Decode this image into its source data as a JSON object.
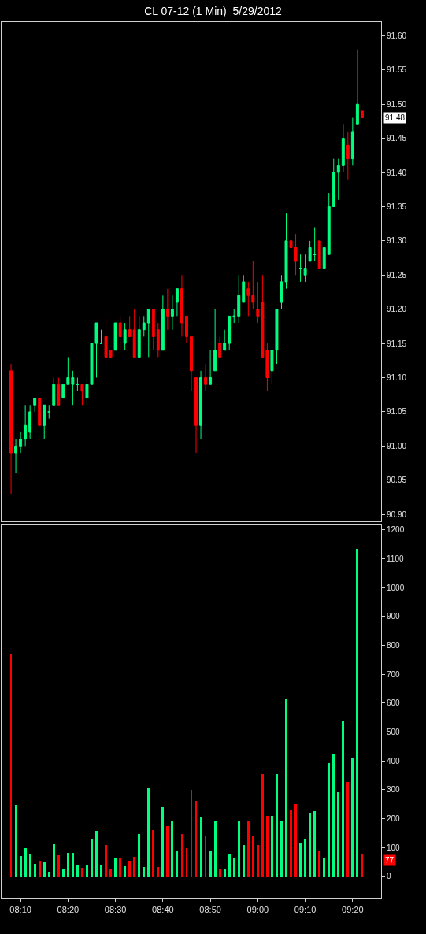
{
  "chart_data": [
    {
      "type": "candlestick",
      "title": "CL 07-12 (1 Min)  5/29/2012",
      "x": [
        "2012-05-29T08:08",
        "2012-05-29T08:09",
        "2012-05-29T08:10",
        "2012-05-29T08:11",
        "2012-05-29T08:12",
        "2012-05-29T08:13",
        "2012-05-29T08:14",
        "2012-05-29T08:15",
        "2012-05-29T08:16",
        "2012-05-29T08:17",
        "2012-05-29T08:18",
        "2012-05-29T08:19",
        "2012-05-29T08:20",
        "2012-05-29T08:21",
        "2012-05-29T08:22",
        "2012-05-29T08:23",
        "2012-05-29T08:24",
        "2012-05-29T08:25",
        "2012-05-29T08:26",
        "2012-05-29T08:27",
        "2012-05-29T08:28",
        "2012-05-29T08:29",
        "2012-05-29T08:30",
        "2012-05-29T08:31",
        "2012-05-29T08:32",
        "2012-05-29T08:33",
        "2012-05-29T08:34",
        "2012-05-29T08:35",
        "2012-05-29T08:36",
        "2012-05-29T08:37",
        "2012-05-29T08:38",
        "2012-05-29T08:39",
        "2012-05-29T08:40",
        "2012-05-29T08:41",
        "2012-05-29T08:42",
        "2012-05-29T08:43",
        "2012-05-29T08:44",
        "2012-05-29T08:45",
        "2012-05-29T08:46",
        "2012-05-29T08:47",
        "2012-05-29T08:48",
        "2012-05-29T08:49",
        "2012-05-29T08:50",
        "2012-05-29T08:51",
        "2012-05-29T08:52",
        "2012-05-29T08:53",
        "2012-05-29T08:54",
        "2012-05-29T08:55",
        "2012-05-29T08:56",
        "2012-05-29T08:57",
        "2012-05-29T08:58",
        "2012-05-29T08:59",
        "2012-05-29T09:00",
        "2012-05-29T09:01",
        "2012-05-29T09:02",
        "2012-05-29T09:03",
        "2012-05-29T09:04",
        "2012-05-29T09:05",
        "2012-05-29T09:06",
        "2012-05-29T09:07",
        "2012-05-29T09:08",
        "2012-05-29T09:09",
        "2012-05-29T09:10",
        "2012-05-29T09:11",
        "2012-05-29T09:12",
        "2012-05-29T09:13",
        "2012-05-29T09:14",
        "2012-05-29T09:15",
        "2012-05-29T09:16",
        "2012-05-29T09:17",
        "2012-05-29T09:18",
        "2012-05-29T09:19",
        "2012-05-29T09:20",
        "2012-05-29T09:21",
        "2012-05-29T09:22"
      ],
      "ohlc": [
        [
          91.11,
          91.12,
          90.93,
          90.99
        ],
        [
          90.99,
          91.01,
          90.96,
          91.0
        ],
        [
          91.0,
          91.02,
          90.99,
          91.01
        ],
        [
          91.01,
          91.06,
          91.0,
          91.03
        ],
        [
          91.02,
          91.06,
          91.01,
          91.05
        ],
        [
          91.06,
          91.07,
          91.05,
          91.07
        ],
        [
          91.07,
          91.07,
          91.03,
          91.03
        ],
        [
          91.03,
          91.06,
          91.01,
          91.06
        ],
        [
          91.05,
          91.06,
          91.04,
          91.05
        ],
        [
          91.06,
          91.1,
          91.06,
          91.09
        ],
        [
          91.09,
          91.1,
          91.06,
          91.06
        ],
        [
          91.07,
          91.09,
          91.07,
          91.09
        ],
        [
          91.09,
          91.13,
          91.09,
          91.1
        ],
        [
          91.09,
          91.11,
          91.06,
          91.1
        ],
        [
          91.09,
          91.1,
          91.08,
          91.09
        ],
        [
          91.09,
          91.09,
          91.06,
          91.08
        ],
        [
          91.07,
          91.1,
          91.06,
          91.09
        ],
        [
          91.09,
          91.15,
          91.09,
          91.15
        ],
        [
          91.15,
          91.18,
          91.1,
          91.18
        ],
        [
          91.15,
          91.17,
          91.15,
          91.15
        ],
        [
          91.16,
          91.19,
          91.12,
          91.13
        ],
        [
          91.14,
          91.14,
          91.13,
          91.13
        ],
        [
          91.14,
          91.18,
          91.14,
          91.18
        ],
        [
          91.18,
          91.19,
          91.14,
          91.16
        ],
        [
          91.15,
          91.18,
          91.14,
          91.17
        ],
        [
          91.17,
          91.19,
          91.16,
          91.16
        ],
        [
          91.17,
          91.2,
          91.13,
          91.13
        ],
        [
          91.13,
          91.19,
          91.13,
          91.17
        ],
        [
          91.17,
          91.19,
          91.16,
          91.18
        ],
        [
          91.18,
          91.2,
          91.13,
          91.2
        ],
        [
          91.2,
          91.2,
          91.14,
          91.16
        ],
        [
          91.17,
          91.18,
          91.13,
          91.14
        ],
        [
          91.14,
          91.22,
          91.14,
          91.2
        ],
        [
          91.2,
          91.23,
          91.17,
          91.19
        ],
        [
          91.19,
          91.22,
          91.17,
          91.2
        ],
        [
          91.21,
          91.23,
          91.19,
          91.23
        ],
        [
          91.23,
          91.25,
          91.16,
          91.18
        ],
        [
          91.19,
          91.19,
          91.15,
          91.16
        ],
        [
          91.16,
          91.16,
          91.08,
          91.11
        ],
        [
          91.1,
          91.1,
          90.99,
          91.03
        ],
        [
          91.03,
          91.11,
          91.01,
          91.1
        ],
        [
          91.1,
          91.12,
          91.08,
          91.09
        ],
        [
          91.09,
          91.14,
          91.09,
          91.1
        ],
        [
          91.11,
          91.2,
          91.11,
          91.14
        ],
        [
          91.15,
          91.16,
          91.13,
          91.13
        ],
        [
          91.14,
          91.17,
          91.14,
          91.15
        ],
        [
          91.15,
          91.19,
          91.14,
          91.19
        ],
        [
          91.19,
          91.2,
          91.18,
          91.19
        ],
        [
          91.19,
          91.25,
          91.18,
          91.22
        ],
        [
          91.21,
          91.25,
          91.21,
          91.24
        ],
        [
          91.23,
          91.24,
          91.19,
          91.22
        ],
        [
          91.22,
          91.27,
          91.2,
          91.21
        ],
        [
          91.2,
          91.24,
          91.18,
          91.19
        ],
        [
          91.21,
          91.25,
          91.13,
          91.13
        ],
        [
          91.14,
          91.15,
          91.08,
          91.1
        ],
        [
          91.11,
          91.14,
          91.09,
          91.14
        ],
        [
          91.14,
          91.2,
          91.12,
          91.2
        ],
        [
          91.21,
          91.25,
          91.2,
          91.24
        ],
        [
          91.24,
          91.34,
          91.23,
          91.3
        ],
        [
          91.3,
          91.32,
          91.28,
          91.29
        ],
        [
          91.29,
          91.31,
          91.25,
          91.27
        ],
        [
          91.26,
          91.28,
          91.24,
          91.26
        ],
        [
          91.25,
          91.28,
          91.24,
          91.26
        ],
        [
          91.27,
          91.3,
          91.27,
          91.29
        ],
        [
          91.28,
          91.32,
          91.27,
          91.28
        ],
        [
          91.3,
          91.3,
          91.26,
          91.26
        ],
        [
          91.26,
          91.29,
          91.26,
          91.29
        ],
        [
          91.28,
          91.37,
          91.28,
          91.35
        ],
        [
          91.35,
          91.42,
          91.35,
          91.4
        ],
        [
          91.4,
          91.42,
          91.36,
          91.41
        ],
        [
          91.41,
          91.47,
          91.4,
          91.45
        ],
        [
          91.44,
          91.46,
          91.39,
          91.42
        ],
        [
          91.42,
          91.48,
          91.41,
          91.46
        ],
        [
          91.47,
          91.58,
          91.47,
          91.5
        ],
        [
          91.49,
          91.49,
          91.48,
          91.48
        ]
      ],
      "colors": [
        "#ff0000",
        "#00ff80",
        "#00ff80",
        "#00ff80",
        "#00ff80",
        "#00ff80",
        "#ff0000",
        "#00ff80",
        "#00ff80",
        "#00ff80",
        "#ff0000",
        "#00ff80",
        "#00ff80",
        "#00ff80",
        "#00ff80",
        "#ff0000",
        "#00ff80",
        "#00ff80",
        "#00ff80",
        "#00ff80",
        "#ff0000",
        "#ff0000",
        "#00ff80",
        "#ff0000",
        "#00ff80",
        "#ff0000",
        "#ff0000",
        "#00ff80",
        "#00ff80",
        "#00ff80",
        "#ff0000",
        "#ff0000",
        "#00ff80",
        "#ff0000",
        "#00ff80",
        "#00ff80",
        "#ff0000",
        "#ff0000",
        "#ff0000",
        "#ff0000",
        "#00ff80",
        "#ff0000",
        "#00ff80",
        "#00ff80",
        "#ff0000",
        "#00ff80",
        "#00ff80",
        "#00ff80",
        "#00ff80",
        "#00ff80",
        "#ff0000",
        "#ff0000",
        "#ff0000",
        "#ff0000",
        "#ff0000",
        "#00ff80",
        "#00ff80",
        "#00ff80",
        "#00ff80",
        "#ff0000",
        "#ff0000",
        "#00ff80",
        "#00ff80",
        "#00ff80",
        "#00ff80",
        "#ff0000",
        "#00ff80",
        "#00ff80",
        "#00ff80",
        "#00ff80",
        "#00ff80",
        "#ff0000",
        "#00ff80",
        "#00ff80",
        "#ff0000"
      ],
      "xlim": [
        "2012-05-29T08:06",
        "2012-05-29T09:26"
      ],
      "ylim": [
        90.89,
        91.62
      ],
      "yticks": [
        {
          "value": 90.9,
          "label": "90.90"
        },
        {
          "value": 90.95,
          "label": "90.95"
        },
        {
          "value": 91.0,
          "label": "91.00"
        },
        {
          "value": 91.05,
          "label": "91.05"
        },
        {
          "value": 91.1,
          "label": "91.10"
        },
        {
          "value": 91.15,
          "label": "91.15"
        },
        {
          "value": 91.2,
          "label": "91.20"
        },
        {
          "value": 91.25,
          "label": "91.25"
        },
        {
          "value": 91.3,
          "label": "91.30"
        },
        {
          "value": 91.35,
          "label": "91.35"
        },
        {
          "value": 91.4,
          "label": "91.40"
        },
        {
          "value": 91.45,
          "label": "91.45"
        },
        {
          "value": 91.5,
          "label": "91.50"
        },
        {
          "value": 91.55,
          "label": "91.55"
        },
        {
          "value": 91.6,
          "label": "91.60"
        }
      ],
      "annotations": [
        "91.48"
      ],
      "tick_labels": "y",
      "grid": false
    },
    {
      "type": "bar",
      "x": [
        "2012-05-29T08:08",
        "2012-05-29T08:09",
        "2012-05-29T08:10",
        "2012-05-29T08:11",
        "2012-05-29T08:12",
        "2012-05-29T08:13",
        "2012-05-29T08:14",
        "2012-05-29T08:15",
        "2012-05-29T08:16",
        "2012-05-29T08:17",
        "2012-05-29T08:18",
        "2012-05-29T08:19",
        "2012-05-29T08:20",
        "2012-05-29T08:21",
        "2012-05-29T08:22",
        "2012-05-29T08:23",
        "2012-05-29T08:24",
        "2012-05-29T08:25",
        "2012-05-29T08:26",
        "2012-05-29T08:27",
        "2012-05-29T08:28",
        "2012-05-29T08:29",
        "2012-05-29T08:30",
        "2012-05-29T08:31",
        "2012-05-29T08:32",
        "2012-05-29T08:33",
        "2012-05-29T08:34",
        "2012-05-29T08:35",
        "2012-05-29T08:36",
        "2012-05-29T08:37",
        "2012-05-29T08:38",
        "2012-05-29T08:39",
        "2012-05-29T08:40",
        "2012-05-29T08:41",
        "2012-05-29T08:42",
        "2012-05-29T08:43",
        "2012-05-29T08:44",
        "2012-05-29T08:45",
        "2012-05-29T08:46",
        "2012-05-29T08:47",
        "2012-05-29T08:48",
        "2012-05-29T08:49",
        "2012-05-29T08:50",
        "2012-05-29T08:51",
        "2012-05-29T08:52",
        "2012-05-29T08:53",
        "2012-05-29T08:54",
        "2012-05-29T08:55",
        "2012-05-29T08:56",
        "2012-05-29T08:57",
        "2012-05-29T08:58",
        "2012-05-29T08:59",
        "2012-05-29T09:00",
        "2012-05-29T09:01",
        "2012-05-29T09:02",
        "2012-05-29T09:03",
        "2012-05-29T09:04",
        "2012-05-29T09:05",
        "2012-05-29T09:06",
        "2012-05-29T09:07",
        "2012-05-29T09:08",
        "2012-05-29T09:09",
        "2012-05-29T09:10",
        "2012-05-29T09:11",
        "2012-05-29T09:12",
        "2012-05-29T09:13",
        "2012-05-29T09:14",
        "2012-05-29T09:15",
        "2012-05-29T09:16",
        "2012-05-29T09:17",
        "2012-05-29T09:18",
        "2012-05-29T09:19",
        "2012-05-29T09:20",
        "2012-05-29T09:21",
        "2012-05-29T09:22"
      ],
      "values": [
        770,
        247,
        70,
        97,
        77,
        43,
        54,
        48,
        15,
        111,
        73,
        26,
        81,
        81,
        39,
        29,
        37,
        130,
        157,
        37,
        108,
        26,
        62,
        62,
        35,
        54,
        68,
        146,
        32,
        307,
        160,
        32,
        239,
        174,
        190,
        89,
        146,
        97,
        299,
        262,
        205,
        141,
        86,
        193,
        26,
        26,
        75,
        65,
        193,
        108,
        190,
        141,
        108,
        355,
        209,
        209,
        355,
        193,
        616,
        231,
        250,
        116,
        130,
        220,
        225,
        86,
        62,
        393,
        423,
        291,
        537,
        327,
        409,
        1134,
        77
      ],
      "colors": [
        "#ff0000",
        "#00ff80",
        "#00ff80",
        "#00ff80",
        "#00ff80",
        "#00ff80",
        "#ff0000",
        "#00ff80",
        "#00ff80",
        "#00ff80",
        "#ff0000",
        "#00ff80",
        "#00ff80",
        "#00ff80",
        "#00ff80",
        "#ff0000",
        "#00ff80",
        "#00ff80",
        "#00ff80",
        "#00ff80",
        "#ff0000",
        "#ff0000",
        "#00ff80",
        "#ff0000",
        "#00ff80",
        "#ff0000",
        "#ff0000",
        "#00ff80",
        "#00ff80",
        "#00ff80",
        "#ff0000",
        "#ff0000",
        "#00ff80",
        "#ff0000",
        "#00ff80",
        "#00ff80",
        "#ff0000",
        "#ff0000",
        "#ff0000",
        "#ff0000",
        "#00ff80",
        "#ff0000",
        "#00ff80",
        "#00ff80",
        "#ff0000",
        "#00ff80",
        "#00ff80",
        "#00ff80",
        "#00ff80",
        "#00ff80",
        "#ff0000",
        "#ff0000",
        "#ff0000",
        "#ff0000",
        "#ff0000",
        "#00ff80",
        "#00ff80",
        "#00ff80",
        "#00ff80",
        "#ff0000",
        "#ff0000",
        "#00ff80",
        "#00ff80",
        "#00ff80",
        "#00ff80",
        "#ff0000",
        "#00ff80",
        "#00ff80",
        "#00ff80",
        "#00ff80",
        "#00ff80",
        "#ff0000",
        "#00ff80",
        "#00ff80",
        "#ff0000"
      ],
      "xlim": [
        "2012-05-29T08:06",
        "2012-05-29T09:26"
      ],
      "xticks": [
        {
          "value": "2012-05-29T08:10",
          "label": "08:10"
        },
        {
          "value": "2012-05-29T08:20",
          "label": "08:20"
        },
        {
          "value": "2012-05-29T08:30",
          "label": "08:30"
        },
        {
          "value": "2012-05-29T08:40",
          "label": "08:40"
        },
        {
          "value": "2012-05-29T08:50",
          "label": "08:50"
        },
        {
          "value": "2012-05-29T09:00",
          "label": "09:00"
        },
        {
          "value": "2012-05-29T09:10",
          "label": "09:10"
        },
        {
          "value": "2012-05-29T09:20",
          "label": "09:20"
        }
      ],
      "ylim": [
        -74,
        1216
      ],
      "yticks": [
        0,
        100,
        200,
        300,
        400,
        500,
        600,
        700,
        800,
        900,
        1000,
        1100,
        1200
      ],
      "annotations": [
        "77"
      ],
      "grid": false
    }
  ]
}
